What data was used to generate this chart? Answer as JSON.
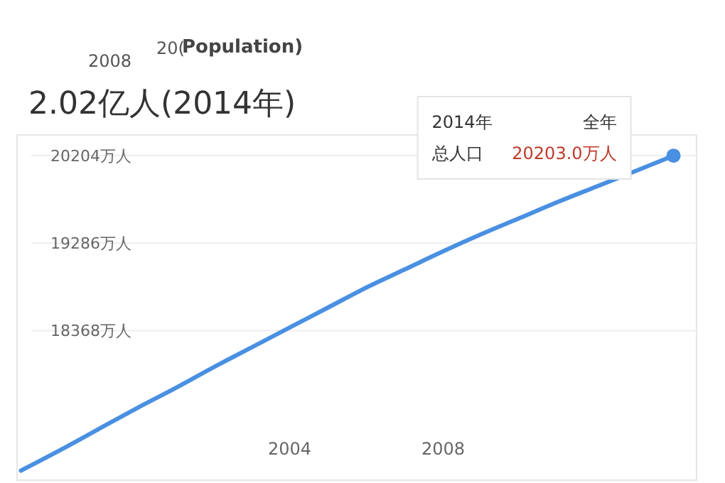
{
  "chart_data": {
    "type": "line",
    "title": "2.02亿人(2014年)",
    "x": [
      1997,
      1998,
      1999,
      2000,
      2001,
      2002,
      2003,
      2004,
      2005,
      2006,
      2007,
      2008,
      2009,
      2010,
      2011,
      2012,
      2013,
      2014
    ],
    "series": [
      {
        "color": "#4a90e2",
        "values": [
          16900,
          17110,
          17330,
          17550,
          17760,
          17980,
          18190,
          18400,
          18610,
          18820,
          19010,
          19200,
          19380,
          19550,
          19720,
          19880,
          20040,
          20203
        ]
      }
    ],
    "xlim": [
      1996.9,
      2014.6
    ],
    "xticks": [
      2004,
      2008
    ],
    "ylim": [
      16800,
      20420
    ],
    "yticks": [
      {
        "value": 18368,
        "label": "18368万人"
      },
      {
        "value": 19286,
        "label": "19286万人"
      },
      {
        "value": 20204,
        "label": "20204万人"
      }
    ],
    "grid": "y",
    "marker": "none",
    "line_style": "solid",
    "annotations": [
      "2008",
      "20(",
      "Population)",
      "2014年",
      "全年",
      "总人口",
      "20203.0万人"
    ]
  }
}
